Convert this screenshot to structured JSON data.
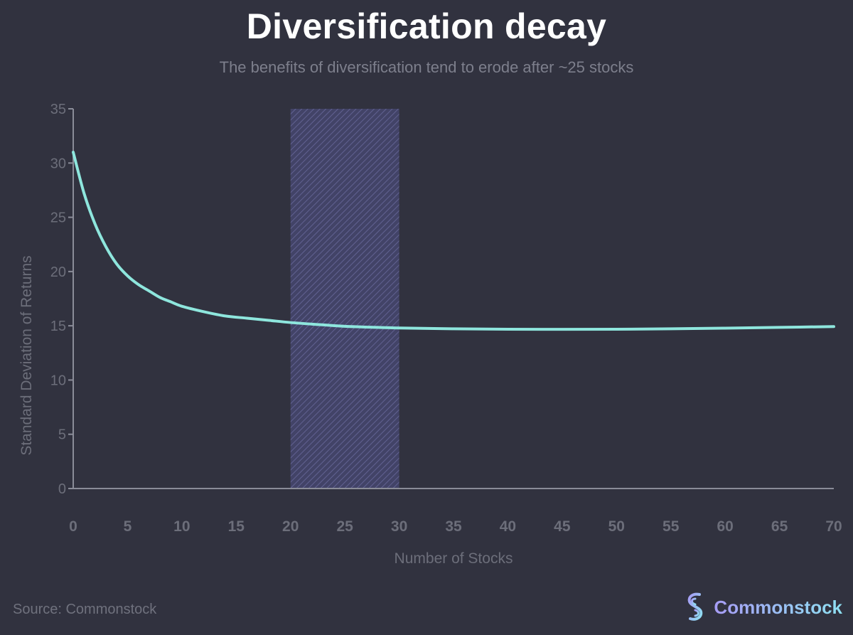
{
  "header": {
    "title": "Diversification decay",
    "subtitle": "The benefits of diversification tend to erode after ~25 stocks"
  },
  "footer": {
    "source": "Source: Commonstock",
    "brand_name": "Commonstock"
  },
  "icons": {
    "brand_logo": "commonstock-logo-icon"
  },
  "colors": {
    "background": "#31323f",
    "line": "#8ee6dd",
    "band_fill": "#4a4a78",
    "band_hatch": "#6a6aa0",
    "axis": "#8a8c98",
    "tick_label": "#6c6e7a",
    "brand_gradient_start": "#a79cf5",
    "brand_gradient_end": "#8ee0f2"
  },
  "chart_data": {
    "type": "line",
    "title": "Diversification decay",
    "subtitle": "The benefits of diversification tend to erode after ~25 stocks",
    "xlabel": "Number of Stocks",
    "ylabel": "Standard Deviation of Returns",
    "xlim": [
      0,
      70
    ],
    "ylim": [
      0,
      35
    ],
    "xticks": [
      0,
      5,
      10,
      15,
      20,
      25,
      30,
      35,
      40,
      45,
      50,
      55,
      60,
      65,
      70
    ],
    "yticks": [
      0,
      5,
      10,
      15,
      20,
      25,
      30,
      35
    ],
    "grid": false,
    "series": [
      {
        "x": [
          0,
          1,
          2,
          3,
          4,
          5,
          6,
          7,
          8,
          9,
          10,
          12,
          14,
          16,
          18,
          20,
          22,
          25,
          28,
          30,
          35,
          40,
          45,
          50,
          55,
          60,
          65,
          70
        ],
        "y": [
          31.0,
          27.2,
          24.4,
          22.3,
          20.7,
          19.6,
          18.8,
          18.2,
          17.6,
          17.2,
          16.8,
          16.3,
          15.9,
          15.7,
          15.5,
          15.3,
          15.15,
          14.95,
          14.85,
          14.8,
          14.72,
          14.68,
          14.67,
          14.68,
          14.72,
          14.78,
          14.85,
          14.93
        ]
      }
    ],
    "highlight_band": {
      "x_start": 20,
      "x_end": 30,
      "style": "hatched"
    }
  }
}
